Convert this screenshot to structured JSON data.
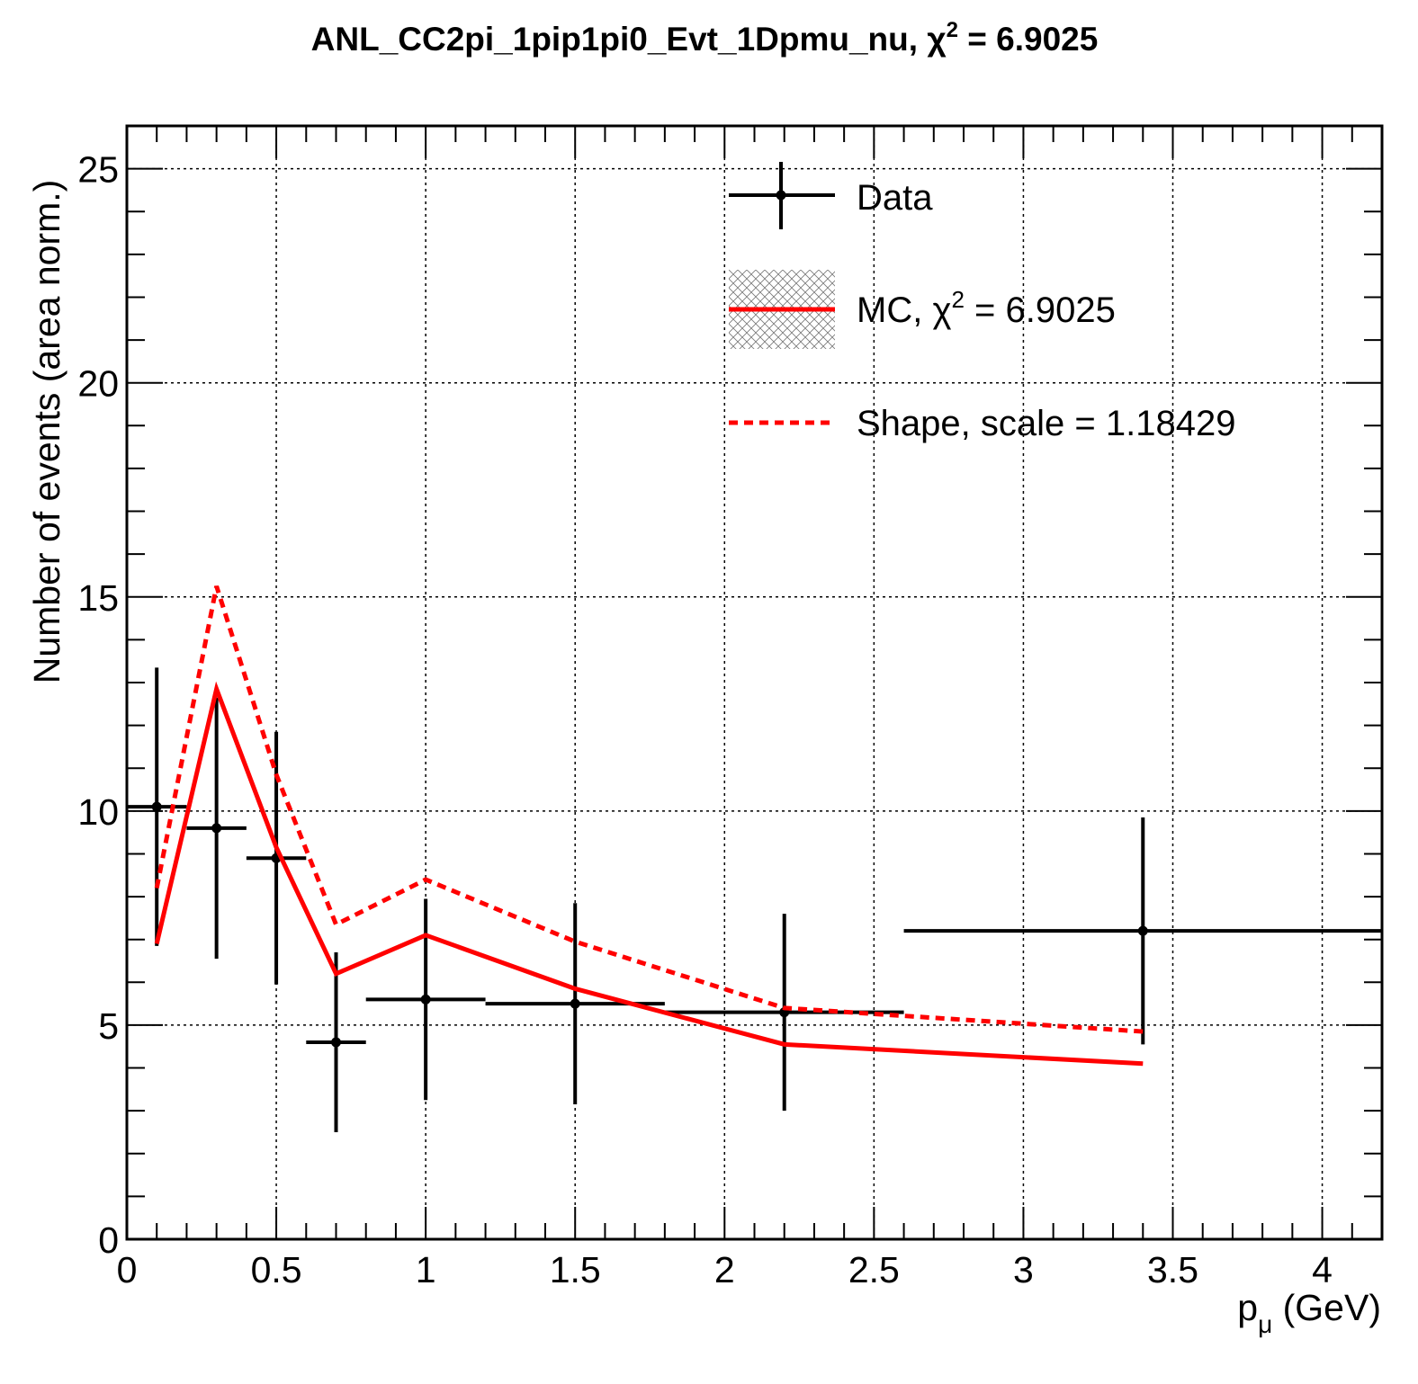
{
  "chart_data": {
    "type": "line",
    "title": "ANL_CC2pi_1pip1pi0_Evt_1Dpmu_nu, χ² = 6.9025",
    "title_parts": {
      "prefix": "ANL_CC2pi_1pip1pi0_Evt_1Dpmu_nu, ",
      "chi": "χ",
      "sup": "2",
      "suffix": " = 6.9025"
    },
    "xlabel": "p",
    "xlabel_sub": "μ",
    "xlabel_unit": " (GeV)",
    "ylabel": "Number of events (area norm.)",
    "xlim": [
      0,
      4.2
    ],
    "ylim": [
      0,
      26
    ],
    "xticks": [
      0,
      0.5,
      1,
      1.5,
      2,
      2.5,
      3,
      3.5,
      4
    ],
    "xtick_labels": [
      "0",
      "0.5",
      "1",
      "1.5",
      "2",
      "2.5",
      "3",
      "3.5",
      "4"
    ],
    "yticks": [
      0,
      5,
      10,
      15,
      20,
      25
    ],
    "ytick_labels": [
      "0",
      "5",
      "10",
      "15",
      "20",
      "25"
    ],
    "grid": true,
    "legend_position": "top-right",
    "series": [
      {
        "name": "Data",
        "kind": "errorbar",
        "color": "#000000",
        "x": [
          0.1,
          0.3,
          0.5,
          0.7,
          1.0,
          1.5,
          2.2,
          3.4
        ],
        "xlo": [
          0.0,
          0.2,
          0.4,
          0.6,
          0.8,
          1.2,
          1.8,
          2.6
        ],
        "xhi": [
          0.2,
          0.4,
          0.6,
          0.8,
          1.2,
          1.8,
          2.6,
          4.2
        ],
        "y": [
          10.1,
          9.6,
          8.9,
          4.6,
          5.6,
          5.5,
          5.3,
          7.2
        ],
        "yerr": [
          3.25,
          3.05,
          2.95,
          2.1,
          2.35,
          2.35,
          2.3,
          2.65
        ]
      },
      {
        "name": "MC",
        "legend_label": {
          "prefix": "MC, ",
          "chi": "χ",
          "sup": "2",
          "suffix": " = 6.9025"
        },
        "kind": "line",
        "color": "#ff0000",
        "x": [
          0.1,
          0.3,
          0.5,
          0.7,
          1.0,
          1.5,
          2.2,
          3.4
        ],
        "y": [
          6.9,
          12.85,
          9.15,
          6.2,
          7.1,
          5.85,
          4.55,
          4.1
        ]
      },
      {
        "name": "Shape, scale = 1.18429",
        "kind": "dashed-line",
        "color": "#ff0000",
        "x": [
          0.1,
          0.3,
          0.5,
          0.7,
          1.0,
          1.5,
          2.2,
          3.4
        ],
        "y": [
          8.2,
          15.25,
          10.85,
          7.35,
          8.4,
          6.95,
          5.4,
          4.85
        ]
      }
    ]
  }
}
